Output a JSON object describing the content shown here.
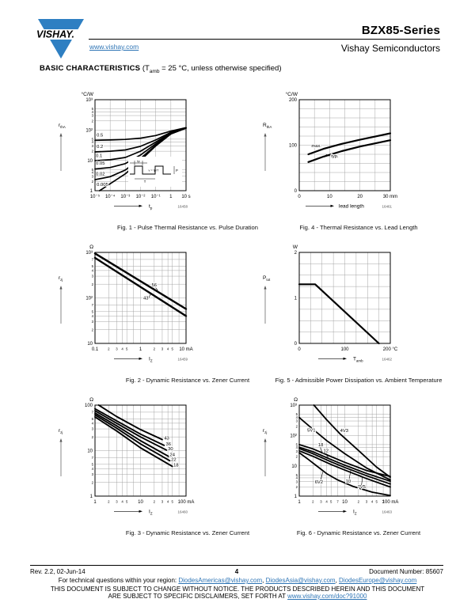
{
  "colors": {
    "brand_blue": "#2e7fc2",
    "link_blue": "#2d74b5"
  },
  "header": {
    "logo_text": "VISHAY.",
    "website": "www.vishay.com",
    "title": "BZX85-Series",
    "subtitle": "Vishay Semiconductors"
  },
  "section": {
    "heading": "BASIC CHARACTERISTICS",
    "cond_pre": " (T",
    "cond_sub": "amb",
    "cond_post": " = 25 °C, unless otherwise specified)"
  },
  "footer": {
    "rev": "Rev. 2.2, 02-Jun-14",
    "page": "4",
    "doc_number": "Document Number: 85607",
    "tech_line_pre": "For technical questions within your region: ",
    "link_americas": "DiodesAmericas@vishay.com",
    "link_asia": "DiodesAsia@vishay.com",
    "link_europe": "DiodesEurope@vishay.com",
    "sep": ", ",
    "disclaimer_line1": "THIS DOCUMENT IS SUBJECT TO CHANGE WITHOUT NOTICE. THE PRODUCTS DESCRIBED HEREIN AND THIS DOCUMENT",
    "disclaimer_line2_pre": "ARE SUBJECT TO SPECIFIC DISCLAIMERS, SET FORTH AT ",
    "disclaimer_link": "www.vishay.com/doc?91000"
  },
  "chart_data": [
    {
      "id": "fig1",
      "type": "line",
      "caption": "Fig. 1 - Pulse Thermal Resistance vs. Pulse Duration",
      "code": "16458",
      "x": {
        "scale": "log",
        "min": -5,
        "max": 1,
        "labels": [
          "10⁻⁵",
          "10⁻⁴",
          "10⁻³",
          "10⁻²",
          "10⁻¹",
          "1",
          "10 s"
        ],
        "minors": [],
        "minor_labels": [],
        "name": "t",
        "sub": "p"
      },
      "y": {
        "scale": "log",
        "min": 0,
        "max": 3,
        "labels": [
          "10³",
          "10²",
          "10",
          "1"
        ],
        "minors": [
          2,
          3,
          4,
          5
        ],
        "minor_labels": [
          2,
          3,
          4,
          5
        ],
        "unit": "°C/W",
        "name": "r",
        "sub": "thA"
      },
      "series": [
        {
          "name": "0.5",
          "points": [
            [
              1e-05,
              46
            ],
            [
              0.0001,
              47
            ],
            [
              0.001,
              49
            ],
            [
              0.01,
              54
            ],
            [
              0.1,
              66
            ],
            [
              1,
              92
            ],
            [
              10,
              120
            ]
          ]
        },
        {
          "name": "0.2",
          "points": [
            [
              1e-05,
              19
            ],
            [
              0.0001,
              20
            ],
            [
              0.001,
              22
            ],
            [
              0.01,
              29
            ],
            [
              0.1,
              47
            ],
            [
              1,
              84
            ],
            [
              10,
              118
            ]
          ]
        },
        {
          "name": "0.1",
          "points": [
            [
              1e-05,
              9.8
            ],
            [
              0.0001,
              10.5
            ],
            [
              0.001,
              12.5
            ],
            [
              0.01,
              20
            ],
            [
              0.1,
              40
            ],
            [
              1,
              80
            ],
            [
              10,
              117
            ]
          ]
        },
        {
          "name": "0.05",
          "points": [
            [
              1e-05,
              5.2
            ],
            [
              0.0001,
              5.8
            ],
            [
              0.001,
              7.8
            ],
            [
              0.01,
              15
            ],
            [
              0.1,
              35
            ],
            [
              1,
              77
            ],
            [
              10,
              116
            ]
          ]
        },
        {
          "name": "0.02",
          "points": [
            [
              1e-05,
              2.3
            ],
            [
              0.0001,
              2.9
            ],
            [
              0.001,
              4.8
            ],
            [
              0.01,
              11.5
            ],
            [
              0.1,
              31.5
            ],
            [
              1,
              75
            ],
            [
              10,
              116
            ]
          ]
        },
        {
          "name": "0.005",
          "points": [
            [
              2e-05,
              1.0
            ],
            [
              0.0001,
              1.7
            ],
            [
              0.001,
              3.6
            ],
            [
              0.01,
              10
            ],
            [
              0.1,
              30
            ],
            [
              1,
              74
            ],
            [
              10,
              115
            ]
          ]
        }
      ],
      "labels": [
        {
          "text": "0.5",
          "x": 1.3e-05,
          "y": 62
        },
        {
          "text": "0.2",
          "x": 1.3e-05,
          "y": 26
        },
        {
          "text": "0.1",
          "x": 1.15e-05,
          "y": 13
        },
        {
          "text": "0.05",
          "x": 1.15e-05,
          "y": 7.2
        },
        {
          "text": "0.02",
          "x": 1.15e-05,
          "y": 3.2
        },
        {
          "text": "0.005",
          "x": 1.3e-05,
          "y": 1.45
        }
      ],
      "leaders": [],
      "inset": {
        "tp": "tp",
        "formula": "v = tp/T",
        "T": "T",
        "P": "P"
      }
    },
    {
      "id": "fig2",
      "type": "line",
      "caption": "Fig. 2 - Dynamic Resistance vs. Zener Current",
      "code": "16459",
      "x": {
        "scale": "log",
        "min": -1,
        "max": 1,
        "labels": [
          "0.1",
          "1",
          "10 mA"
        ],
        "minors": [
          2,
          3,
          4,
          5,
          7
        ],
        "minor_labels": [
          2,
          3,
          4,
          5
        ],
        "name": "I",
        "sub": "Z"
      },
      "y": {
        "scale": "log",
        "min": 1,
        "max": 3,
        "labels": [
          "10³",
          "10²",
          "10"
        ],
        "minors": [
          2,
          3,
          4,
          5,
          7
        ],
        "minor_labels": [
          2,
          3,
          4,
          5,
          7
        ],
        "unit": "Ω",
        "name": "r",
        "sub": "zj"
      },
      "series": [
        {
          "name": "56",
          "points": [
            [
              0.1,
              950
            ],
            [
              10,
              57
            ]
          ]
        },
        {
          "name": "43",
          "points": [
            [
              0.1,
              760
            ],
            [
              10,
              40
            ]
          ]
        }
      ],
      "labels": [
        {
          "text": "56",
          "x": 1.75,
          "y": 178
        },
        {
          "text": "43",
          "x": 1.15,
          "y": 92
        }
      ],
      "leaders": [
        [
          2.15,
          168,
          2.4,
          146
        ],
        [
          1.5,
          98,
          1.68,
          124
        ]
      ]
    },
    {
      "id": "fig3",
      "type": "line",
      "caption": "Fig. 3 - Dynamic Resistance vs. Zener Current",
      "code": "16460",
      "x": {
        "scale": "log",
        "min": 0,
        "max": 2,
        "labels": [
          "1",
          "10",
          "100 mA"
        ],
        "minors": [
          2,
          3,
          4,
          5,
          7
        ],
        "minor_labels": [
          2,
          3,
          4,
          5
        ],
        "name": "I",
        "sub": "Z"
      },
      "y": {
        "scale": "log",
        "min": 0,
        "max": 2,
        "labels": [
          "100",
          "10",
          "1"
        ],
        "minors": [
          2,
          3,
          4,
          5,
          7
        ],
        "minor_labels": [
          2,
          3,
          4,
          5,
          7
        ],
        "unit": "Ω",
        "name": "r",
        "sub": "zj"
      },
      "series": [
        {
          "name": "43",
          "points": [
            [
              1.2,
              100
            ],
            [
              3,
              56
            ],
            [
              10,
              29
            ],
            [
              30,
              17.5
            ]
          ]
        },
        {
          "name": "36",
          "points": [
            [
              1,
              83
            ],
            [
              3,
              45
            ],
            [
              10,
              23
            ],
            [
              33,
              13
            ]
          ]
        },
        {
          "name": "30",
          "points": [
            [
              1,
              75
            ],
            [
              3,
              40
            ],
            [
              10,
              20
            ],
            [
              37,
              10.3
            ]
          ]
        },
        {
          "name": "24",
          "points": [
            [
              1,
              67
            ],
            [
              3,
              35
            ],
            [
              10,
              16.5
            ],
            [
              41,
              7.5
            ]
          ]
        },
        {
          "name": "22",
          "points": [
            [
              1,
              61
            ],
            [
              3,
              31
            ],
            [
              10,
              14
            ],
            [
              44,
              6
            ]
          ]
        },
        {
          "name": "18",
          "points": [
            [
              1,
              55
            ],
            [
              3,
              27
            ],
            [
              10,
              11.5
            ],
            [
              50,
              4.5
            ]
          ]
        }
      ],
      "labels": [
        {
          "text": "43",
          "x": 33,
          "y": 17.5
        },
        {
          "text": "36",
          "x": 36,
          "y": 13
        },
        {
          "text": "30",
          "x": 40,
          "y": 10.3
        },
        {
          "text": "24",
          "x": 44,
          "y": 7.5
        },
        {
          "text": "22",
          "x": 47,
          "y": 6
        },
        {
          "text": "18",
          "x": 53,
          "y": 4.5
        }
      ],
      "leaders": []
    },
    {
      "id": "fig4",
      "type": "line",
      "caption": "Fig. 4 - Thermal Resistance vs. Lead Length",
      "code": "16461",
      "x": {
        "scale": "linear",
        "min": 0,
        "max": 30,
        "grid": 5,
        "ticks": [
          0,
          10,
          20,
          30
        ],
        "labels": [
          "0",
          "10",
          "20",
          "30 mm"
        ],
        "name": "lead length",
        "sub": ""
      },
      "y": {
        "scale": "linear",
        "min": 0,
        "max": 200,
        "grid": 20,
        "ticks": [
          0,
          100,
          200
        ],
        "labels": [
          "0",
          "100",
          "200"
        ],
        "unit": "°C/W",
        "name": "R",
        "sub": "thA"
      },
      "series": [
        {
          "name": "max",
          "points": [
            [
              3,
              80
            ],
            [
              8,
              92
            ],
            [
              14,
              103
            ],
            [
              20,
              112
            ],
            [
              25,
              119
            ],
            [
              30,
              126
            ]
          ]
        },
        {
          "name": "typ",
          "points": [
            [
              3,
              63
            ],
            [
              8,
              75
            ],
            [
              14,
              87
            ],
            [
              20,
              97
            ],
            [
              25,
              104
            ],
            [
              30,
              111
            ]
          ]
        }
      ],
      "labels": [
        {
          "text": "max.",
          "x": 4,
          "y": 96
        },
        {
          "text": "typ.",
          "x": 10.5,
          "y": 73
        }
      ],
      "leaders": [
        [
          10,
          76,
          8.8,
          80
        ]
      ]
    },
    {
      "id": "fig5",
      "type": "line",
      "caption": "Fig. 5 - Admissible Power Dissipation vs. Ambient Temperature",
      "code": "16462",
      "x": {
        "scale": "linear",
        "min": 0,
        "max": 200,
        "grid": 25,
        "ticks": [
          0,
          100,
          200
        ],
        "labels": [
          "0",
          "100",
          "200 °C"
        ],
        "name": "T",
        "sub": "amb"
      },
      "y": {
        "scale": "linear",
        "min": 0,
        "max": 2,
        "grid": 0.25,
        "ticks": [
          0,
          1,
          2
        ],
        "labels": [
          "0",
          "1",
          "2"
        ],
        "unit": "W",
        "name": "P",
        "sub": "tot"
      },
      "series": [
        {
          "name": "Ptot",
          "points": [
            [
              0,
              1.3
            ],
            [
              35,
              1.3
            ],
            [
              175,
              0
            ]
          ]
        }
      ],
      "labels": [],
      "leaders": []
    },
    {
      "id": "fig6",
      "type": "line",
      "caption": "Fig. 6 - Dynamic Resistance vs. Zener Current",
      "code": "16463",
      "x": {
        "scale": "log",
        "min": 0,
        "max": 2,
        "labels": [
          "1",
          "10",
          "100 mA"
        ],
        "minors": [
          2,
          3,
          4,
          5,
          7
        ],
        "minor_labels": [
          2,
          3,
          4,
          5,
          7
        ],
        "name": "I",
        "sub": "Z"
      },
      "y": {
        "scale": "log",
        "min": 0,
        "max": 3,
        "labels": [
          "10³",
          "10²",
          "10",
          "1"
        ],
        "minors": [
          2,
          3,
          4,
          5
        ],
        "minor_labels": [
          2,
          3,
          4,
          5
        ],
        "unit": "Ω",
        "name": "r",
        "sub": "zj"
      },
      "series": [
        {
          "name": "4V3",
          "points": [
            [
              2.1,
              1000
            ],
            [
              4,
              330
            ],
            [
              8,
              110
            ],
            [
              20,
              32
            ],
            [
              50,
              9
            ],
            [
              100,
              4.2
            ]
          ]
        },
        {
          "name": "5V1",
          "points": [
            [
              1,
              390
            ],
            [
              2,
              160
            ],
            [
              4,
              68
            ],
            [
              10,
              25
            ],
            [
              30,
              8.5
            ],
            [
              100,
              3.4
            ]
          ]
        },
        {
          "name": "18",
          "points": [
            [
              1,
              50
            ],
            [
              2,
              36
            ],
            [
              5,
              20
            ],
            [
              10,
              13
            ],
            [
              30,
              7
            ],
            [
              100,
              4.4
            ]
          ]
        },
        {
          "name": "12",
          "points": [
            [
              1,
              41
            ],
            [
              2,
              29
            ],
            [
              5,
              16
            ],
            [
              10,
              10.5
            ],
            [
              30,
              5.6
            ],
            [
              100,
              3.1
            ]
          ]
        },
        {
          "name": "10",
          "points": [
            [
              1,
              37
            ],
            [
              2,
              25
            ],
            [
              5,
              13.5
            ],
            [
              10,
              8.8
            ],
            [
              30,
              4.7
            ],
            [
              100,
              2.5
            ]
          ]
        },
        {
          "name": "7V5",
          "points": [
            [
              1,
              31
            ],
            [
              2,
              20.5
            ],
            [
              5,
              11
            ],
            [
              10,
              7.2
            ],
            [
              30,
              3.8
            ],
            [
              100,
              2.0
            ]
          ]
        },
        {
          "name": "6V2",
          "points": [
            [
              1,
              27
            ],
            [
              1.6,
              16
            ],
            [
              2.5,
              9.5
            ],
            [
              4,
              5.5
            ],
            [
              7,
              3.4
            ],
            [
              15,
              2.1
            ],
            [
              40,
              1.35
            ],
            [
              100,
              1.05
            ]
          ]
        }
      ],
      "labels": [
        {
          "text": "5V1",
          "x": 1.5,
          "y": 135
        },
        {
          "text": "4V3",
          "x": 7.9,
          "y": 128
        },
        {
          "text": "18",
          "x": 2.6,
          "y": 44
        },
        {
          "text": "12",
          "x": 3.4,
          "y": 28
        },
        {
          "text": "6V2",
          "x": 2.2,
          "y": 2.6
        },
        {
          "text": "10",
          "x": 10.5,
          "y": 2.8
        },
        {
          "text": "7V5",
          "x": 19,
          "y": 1.8
        }
      ],
      "leaders": [
        [
          2.0,
          132,
          2.35,
          141
        ],
        [
          7.6,
          126,
          6.8,
          148
        ],
        [
          2.9,
          40,
          3.15,
          29
        ],
        [
          3.9,
          25,
          4.3,
          18.5
        ],
        [
          2.9,
          3.0,
          3.3,
          6.3
        ],
        [
          12.3,
          3.2,
          13.5,
          7.0
        ],
        [
          23,
          2.0,
          24.5,
          4.1
        ]
      ]
    }
  ]
}
